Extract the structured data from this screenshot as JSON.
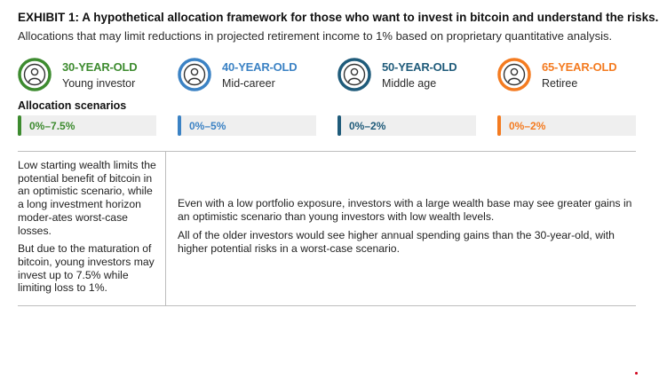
{
  "header": {
    "title": "EXHIBIT 1: A hypothetical allocation framework for those who want to invest in bitcoin and understand the risks.",
    "subtitle": "Allocations that may limit reductions in projected retirement income to 1% based on proprietary quantitative analysis."
  },
  "colors": {
    "green": "#3d8b2f",
    "blue": "#3b82c4",
    "teal": "#1f5b7a",
    "orange": "#f47b20"
  },
  "investors": [
    {
      "age": "30-YEAR-OLD",
      "description": "Young investor",
      "allocation": "0%–7.5%",
      "icon": "person-avatar-icon"
    },
    {
      "age": "40-YEAR-OLD",
      "description": "Mid-career",
      "allocation": "0%–5%",
      "icon": "person-avatar-icon"
    },
    {
      "age": "50-YEAR-OLD",
      "description": "Middle age",
      "allocation": "0%–2%",
      "icon": "person-avatar-icon"
    },
    {
      "age": "65-YEAR-OLD",
      "description": "Retiree",
      "allocation": "0%–2%",
      "icon": "person-avatar-icon"
    }
  ],
  "allocation_label": "Allocation scenarios",
  "left_notes": [
    "Low starting wealth limits the potential benefit of bitcoin in an optimistic scenario, while a long investment horizon moder-ates worst-case losses.",
    "But due to the maturation of bitcoin, young investors may invest up to 7.5% while limiting loss to 1%."
  ],
  "right_notes": [
    "Even with a low portfolio exposure, investors with a large wealth base may see greater gains in an optimistic scenario than young investors with low wealth levels.",
    "All of the older investors would see higher annual spending gains than the 30-year-old, with higher potential risks in a worst-case scenario."
  ]
}
